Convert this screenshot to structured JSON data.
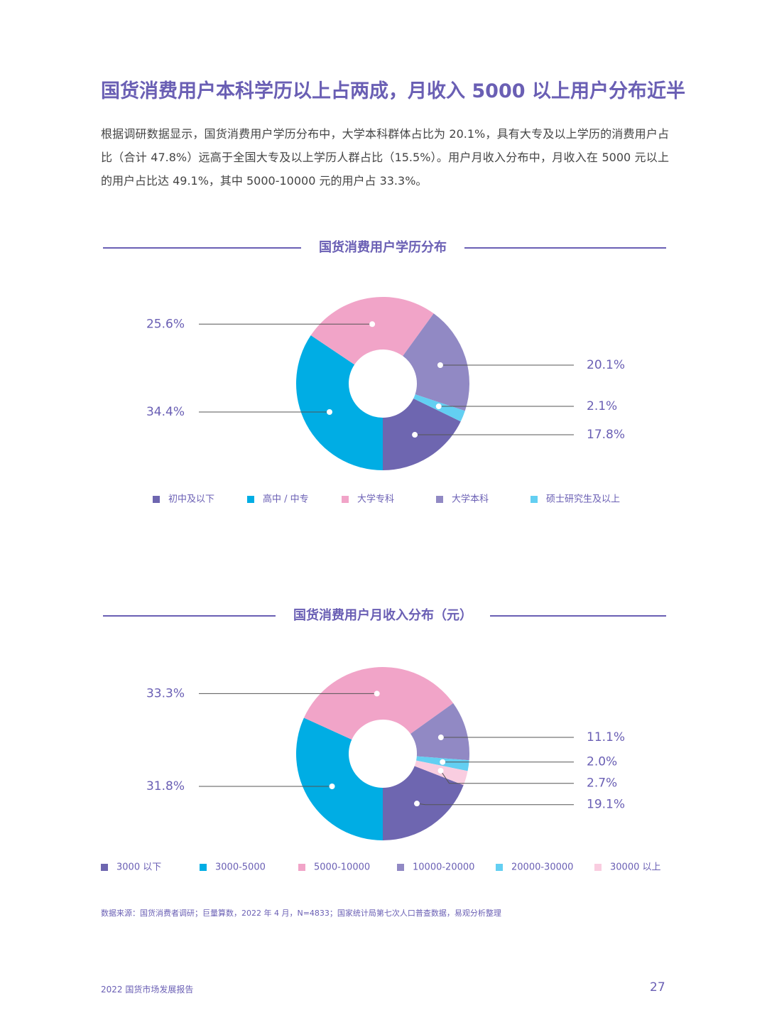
{
  "title": "国货消费用户本科学历以上占两成，月收入 5000 以上用户分布近半",
  "paragraph": "根据调研数据显示，国货消费用户学历分布中，大学本科群体占比为 20.1%，具有大专及以上学历的消费用户占比（合计 47.8%）远高于全国大专及以上学历人群占比（15.5%）。用户月收入分布中，月收入在 5000 元以上的用户占比达 49.1%，其中 5000-10000 元的用户占 33.3%。",
  "chart_data": [
    {
      "type": "pie",
      "title": "国货消费用户学历分布",
      "categories": [
        "初中及以下",
        "高中 / 中专",
        "大学专科",
        "大学本科",
        "硕士研究生及以上"
      ],
      "values": [
        17.8,
        34.4,
        25.6,
        20.1,
        2.1
      ],
      "value_labels": [
        "17.8%",
        "34.4%",
        "25.6%",
        "20.1%",
        "2.1%"
      ],
      "colors": [
        "#6e66b0",
        "#00ade4",
        "#f1a4c8",
        "#9189c4",
        "#63cff2"
      ]
    },
    {
      "type": "pie",
      "title": "国货消费用户月收入分布（元）",
      "categories": [
        "3000 以下",
        "3000-5000",
        "5000-10000",
        "10000-20000",
        "20000-30000",
        "30000 以上"
      ],
      "values": [
        19.1,
        31.8,
        33.3,
        11.1,
        2.0,
        2.7
      ],
      "value_labels": [
        "19.1%",
        "31.8%",
        "33.3%",
        "11.1%",
        "2.0%",
        "2.7%"
      ],
      "colors": [
        "#6e66b0",
        "#00ade4",
        "#f1a4c8",
        "#9189c4",
        "#63cff2",
        "#f9cde0"
      ]
    }
  ],
  "source": "数据来源：国货消费者调研；巨量算数，2022 年 4 月，N=4833；国家统计局第七次人口普查数据，易观分析整理",
  "footer": {
    "report": "2022 国货市场发展报告",
    "page": "27"
  }
}
